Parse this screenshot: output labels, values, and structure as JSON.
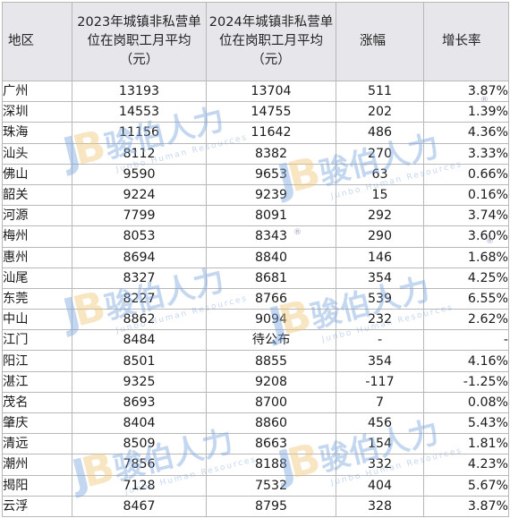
{
  "headers": {
    "region": "地区",
    "wage_2023": "2023年城镇非私营单位在岗职工月平均（元）",
    "wage_2024": "2024年城镇非私营单位在岗职工月平均（元）",
    "increase": "涨幅",
    "growth": "增长率"
  },
  "rows": [
    {
      "region": "广州",
      "wage_2023": "13193",
      "wage_2024": "13704",
      "increase": "511",
      "growth": "3.87%"
    },
    {
      "region": "深圳",
      "wage_2023": "14553",
      "wage_2024": "14755",
      "increase": "202",
      "growth": "1.39%"
    },
    {
      "region": "珠海",
      "wage_2023": "11156",
      "wage_2024": "11642",
      "increase": "486",
      "growth": "4.36%"
    },
    {
      "region": "汕头",
      "wage_2023": "8112",
      "wage_2024": "8382",
      "increase": "270",
      "growth": "3.33%"
    },
    {
      "region": "佛山",
      "wage_2023": "9590",
      "wage_2024": "9653",
      "increase": "63",
      "growth": "0.66%"
    },
    {
      "region": "韶关",
      "wage_2023": "9224",
      "wage_2024": "9239",
      "increase": "15",
      "growth": "0.16%"
    },
    {
      "region": "河源",
      "wage_2023": "7799",
      "wage_2024": "8091",
      "increase": "292",
      "growth": "3.74%"
    },
    {
      "region": "梅州",
      "wage_2023": "8053",
      "wage_2024": "8343",
      "increase": "290",
      "growth": "3.60%"
    },
    {
      "region": "惠州",
      "wage_2023": "8694",
      "wage_2024": "8840",
      "increase": "146",
      "growth": "1.68%"
    },
    {
      "region": "汕尾",
      "wage_2023": "8327",
      "wage_2024": "8681",
      "increase": "354",
      "growth": "4.25%"
    },
    {
      "region": "东莞",
      "wage_2023": "8227",
      "wage_2024": "8766",
      "increase": "539",
      "growth": "6.55%"
    },
    {
      "region": "中山",
      "wage_2023": "8862",
      "wage_2024": "9094",
      "increase": "232",
      "growth": "2.62%"
    },
    {
      "region": "江门",
      "wage_2023": "8484",
      "wage_2024": "待公布",
      "increase": "-",
      "growth": "-"
    },
    {
      "region": "阳江",
      "wage_2023": "8501",
      "wage_2024": "8855",
      "increase": "354",
      "growth": "4.16%"
    },
    {
      "region": "湛江",
      "wage_2023": "9325",
      "wage_2024": "9208",
      "increase": "-117",
      "growth": "-1.25%"
    },
    {
      "region": "茂名",
      "wage_2023": "8693",
      "wage_2024": "8700",
      "increase": "7",
      "growth": "0.08%"
    },
    {
      "region": "肇庆",
      "wage_2023": "8404",
      "wage_2024": "8860",
      "increase": "456",
      "growth": "5.43%"
    },
    {
      "region": "清远",
      "wage_2023": "8509",
      "wage_2024": "8663",
      "increase": "154",
      "growth": "1.81%"
    },
    {
      "region": "潮州",
      "wage_2023": "7856",
      "wage_2024": "8188",
      "increase": "332",
      "growth": "4.23%"
    },
    {
      "region": "揭阳",
      "wage_2023": "7128",
      "wage_2024": "7532",
      "increase": "404",
      "growth": "5.67%"
    },
    {
      "region": "云浮",
      "wage_2023": "8467",
      "wage_2024": "8795",
      "increase": "328",
      "growth": "3.87%"
    }
  ],
  "watermark": {
    "logo_letters": "JB",
    "brand_cn": "骏伯人力",
    "brand_en": "Junbo Human Resources",
    "registered_mark": "®"
  }
}
